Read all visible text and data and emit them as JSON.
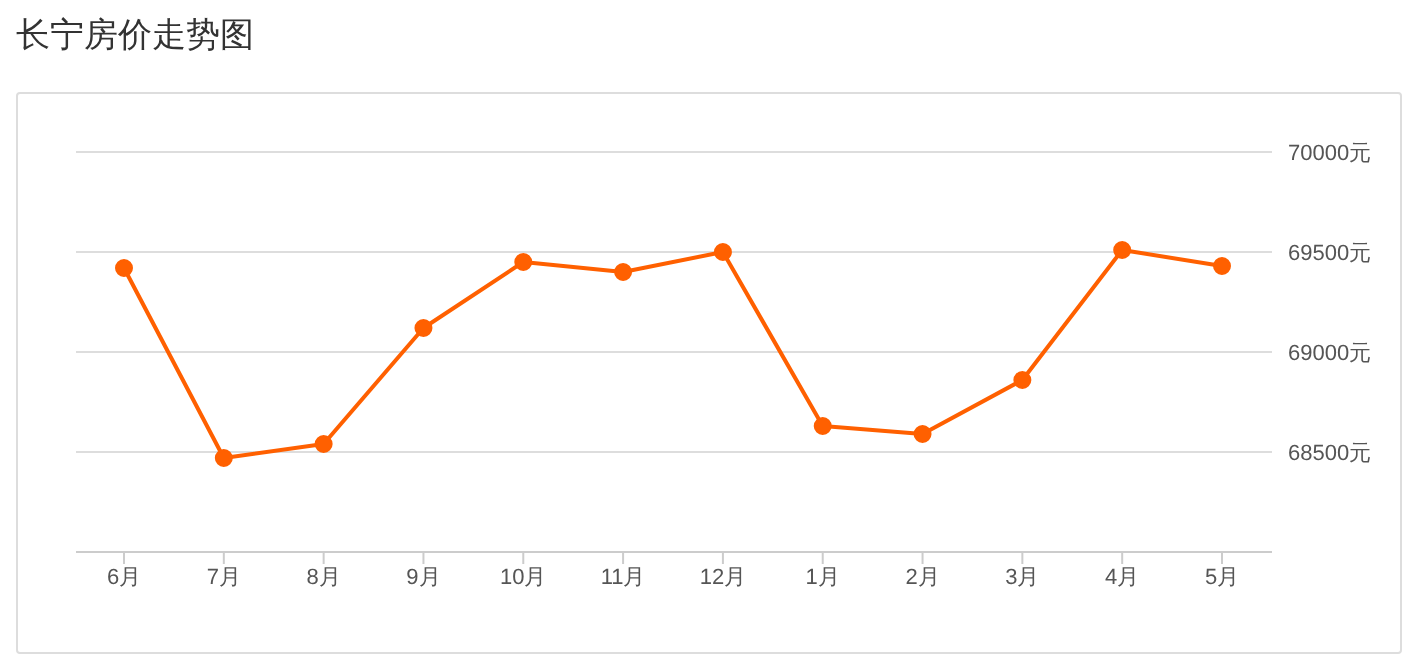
{
  "chart_data": {
    "type": "line",
    "title": "长宁房价走势图",
    "categories": [
      "6月",
      "7月",
      "8月",
      "9月",
      "10月",
      "11月",
      "12月",
      "1月",
      "2月",
      "3月",
      "4月",
      "5月"
    ],
    "series": [
      {
        "color": "#ff6000",
        "values": [
          69420,
          68470,
          68540,
          69120,
          69450,
          69400,
          69500,
          68630,
          68590,
          68860,
          69510,
          69430
        ]
      }
    ],
    "ylim": [
      68000,
      70000
    ],
    "yticks": [
      {
        "value": 68500,
        "label": "68500元"
      },
      {
        "value": 69000,
        "label": "69000元"
      },
      {
        "value": 69500,
        "label": "69500元"
      },
      {
        "value": 70000,
        "label": "70000元"
      }
    ],
    "grid": "y",
    "marker": "circle",
    "line_style": "solid"
  }
}
